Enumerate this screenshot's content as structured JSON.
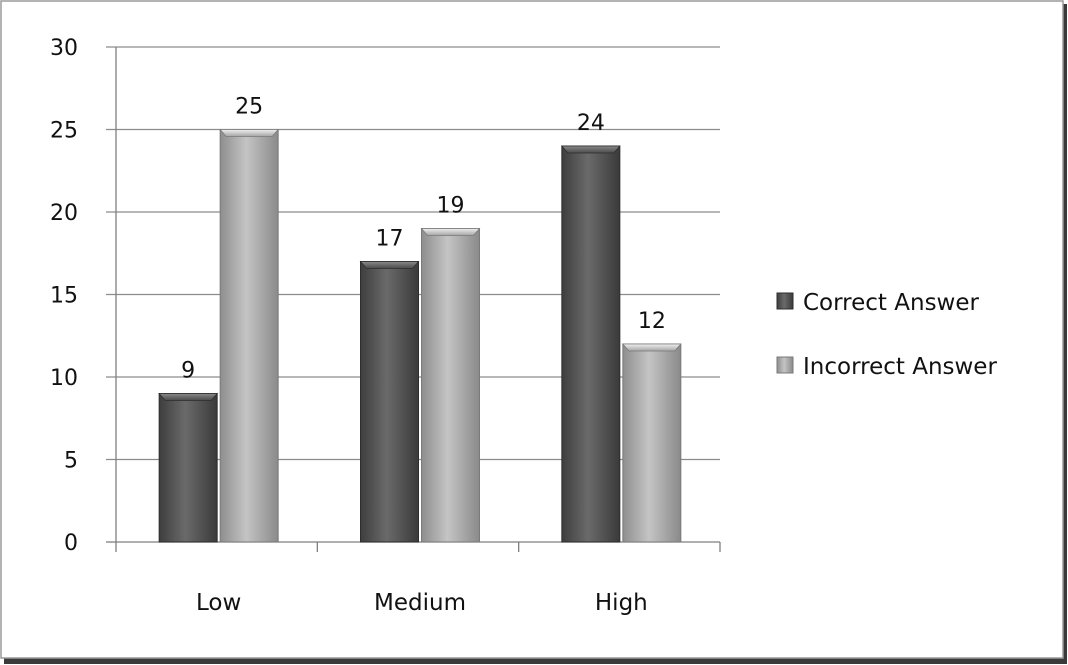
{
  "chart_data": {
    "type": "bar",
    "title": "",
    "xlabel": "",
    "ylabel": "",
    "categories": [
      "Low",
      "Medium",
      "High"
    ],
    "series": [
      {
        "name": "Correct Answer",
        "values": [
          9,
          17,
          24
        ],
        "color": "#5a5a5a"
      },
      {
        "name": "Incorrect Answer",
        "values": [
          25,
          19,
          12
        ],
        "color": "#a8a8a8"
      }
    ],
    "ylim": [
      0,
      30
    ],
    "yticks": [
      0,
      5,
      10,
      15,
      20,
      25,
      30
    ],
    "grid": true,
    "legend_position": "right",
    "data_labels": true
  },
  "colors": {
    "background": "#ffffff",
    "frame": "#9a9a9a",
    "gridline": "#8c8c8c",
    "axis": "#7f7f7f"
  }
}
